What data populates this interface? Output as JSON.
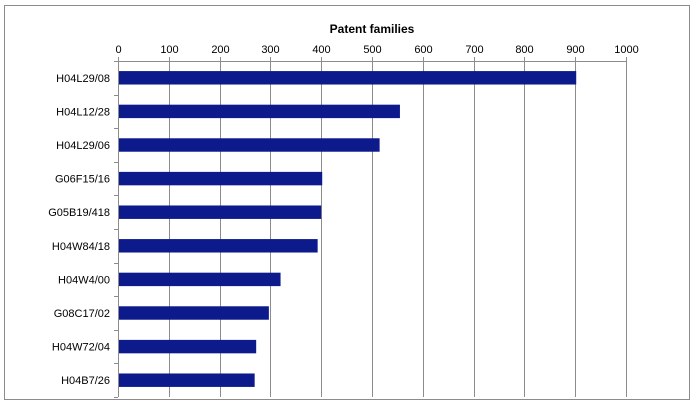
{
  "chart_data": {
    "type": "bar",
    "orientation": "horizontal",
    "title": "",
    "xlabel": "Patent families",
    "ylabel": "",
    "xlim": [
      0,
      1000
    ],
    "x_ticks": [
      0,
      100,
      200,
      300,
      400,
      500,
      600,
      700,
      800,
      900,
      1000
    ],
    "x_axis_position": "top",
    "grid": "vertical",
    "legend": "none",
    "bar_color": "#0c1a8c",
    "categories": [
      "H04L29/08",
      "H04L12/28",
      "H04L29/06",
      "G06F15/16",
      "G05B19/418",
      "H04W84/18",
      "H04W4/00",
      "G08C17/02",
      "H04W72/04",
      "H04B7/26"
    ],
    "values": [
      902,
      555,
      515,
      402,
      400,
      393,
      320,
      297,
      272,
      269
    ]
  }
}
